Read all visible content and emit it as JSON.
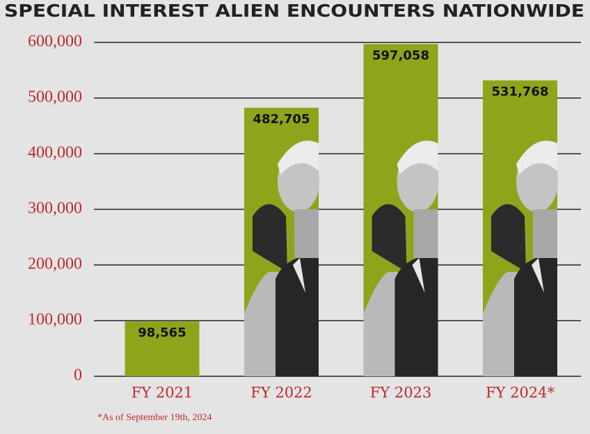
{
  "chart_data": {
    "type": "bar",
    "title": "SPECIAL INTEREST ALIEN ENCOUNTERS NATIONWIDE",
    "categories": [
      "FY 2021",
      "FY 2022",
      "FY 2023",
      "FY 2024*"
    ],
    "values": [
      98565,
      482705,
      597058,
      531768
    ],
    "value_labels": [
      "98,565",
      "482,705",
      "597,058",
      "531,768"
    ],
    "color": "#8ea51b",
    "ylim": [
      0,
      600000
    ],
    "yticks": [
      0,
      {
        "value": 100000,
        "label": "100,000"
      },
      {
        "value": 200000,
        "label": "200,000"
      },
      {
        "value": 300000,
        "label": "300,000"
      },
      {
        "value": 400000,
        "label": "400,000"
      },
      {
        "value": 500000,
        "label": "500,000"
      },
      {
        "value": 600000,
        "label": "600,000"
      }
    ],
    "grid": true,
    "footnote": "*As of September 19th, 2024"
  }
}
